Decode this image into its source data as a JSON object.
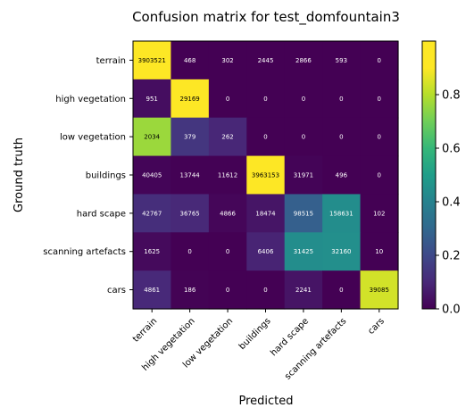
{
  "chart_data": {
    "type": "heatmap",
    "title": "Confusion matrix for test_domfountain3",
    "xlabel": "Predicted",
    "ylabel": "Ground truth",
    "row_labels": [
      "terrain",
      "high vegetation",
      "low vegetation",
      "buildings",
      "hard scape",
      "scanning artefacts",
      "cars"
    ],
    "col_labels": [
      "terrain",
      "high vegetation",
      "low vegetation",
      "buildings",
      "hard scape",
      "scanning artefacts",
      "cars"
    ],
    "values": [
      [
        "3903521",
        "468",
        "302",
        "2445",
        "2866",
        "593",
        "0"
      ],
      [
        "951",
        "29169",
        "0",
        "0",
        "0",
        "0",
        "0"
      ],
      [
        "2034",
        "379",
        "262",
        "0",
        "0",
        "0",
        "0"
      ],
      [
        "40405",
        "13744",
        "11612",
        "3963153",
        "31971",
        "496",
        "0"
      ],
      [
        "42767",
        "36765",
        "4866",
        "18474",
        "98515",
        "158631",
        "102"
      ],
      [
        "1625",
        "0",
        "0",
        "6406",
        "31425",
        "32160",
        "10"
      ],
      [
        "4861",
        "186",
        "0",
        "0",
        "2241",
        "0",
        "39085"
      ]
    ],
    "normalized": [
      [
        0.998,
        0.0001,
        0.0001,
        0.0006,
        0.0007,
        0.0002,
        0.0
      ],
      [
        0.032,
        0.968,
        0.0,
        0.0,
        0.0,
        0.0,
        0.0
      ],
      [
        0.763,
        0.142,
        0.098,
        0.0,
        0.0,
        0.0,
        0.0
      ],
      [
        0.01,
        0.0034,
        0.0029,
        0.976,
        0.0079,
        0.0001,
        0.0
      ],
      [
        0.118,
        0.102,
        0.013,
        0.051,
        0.273,
        0.44,
        0.0003
      ],
      [
        0.022,
        0.0,
        0.0,
        0.089,
        0.438,
        0.448,
        0.0001
      ],
      [
        0.104,
        0.004,
        0.0,
        0.0,
        0.048,
        0.0,
        0.84
      ]
    ],
    "colorbar": {
      "colormap": "viridis",
      "range": [
        0.0,
        1.0
      ],
      "ticks": [
        "0.0",
        "0.2",
        "0.4",
        "0.6",
        "0.8"
      ]
    }
  }
}
